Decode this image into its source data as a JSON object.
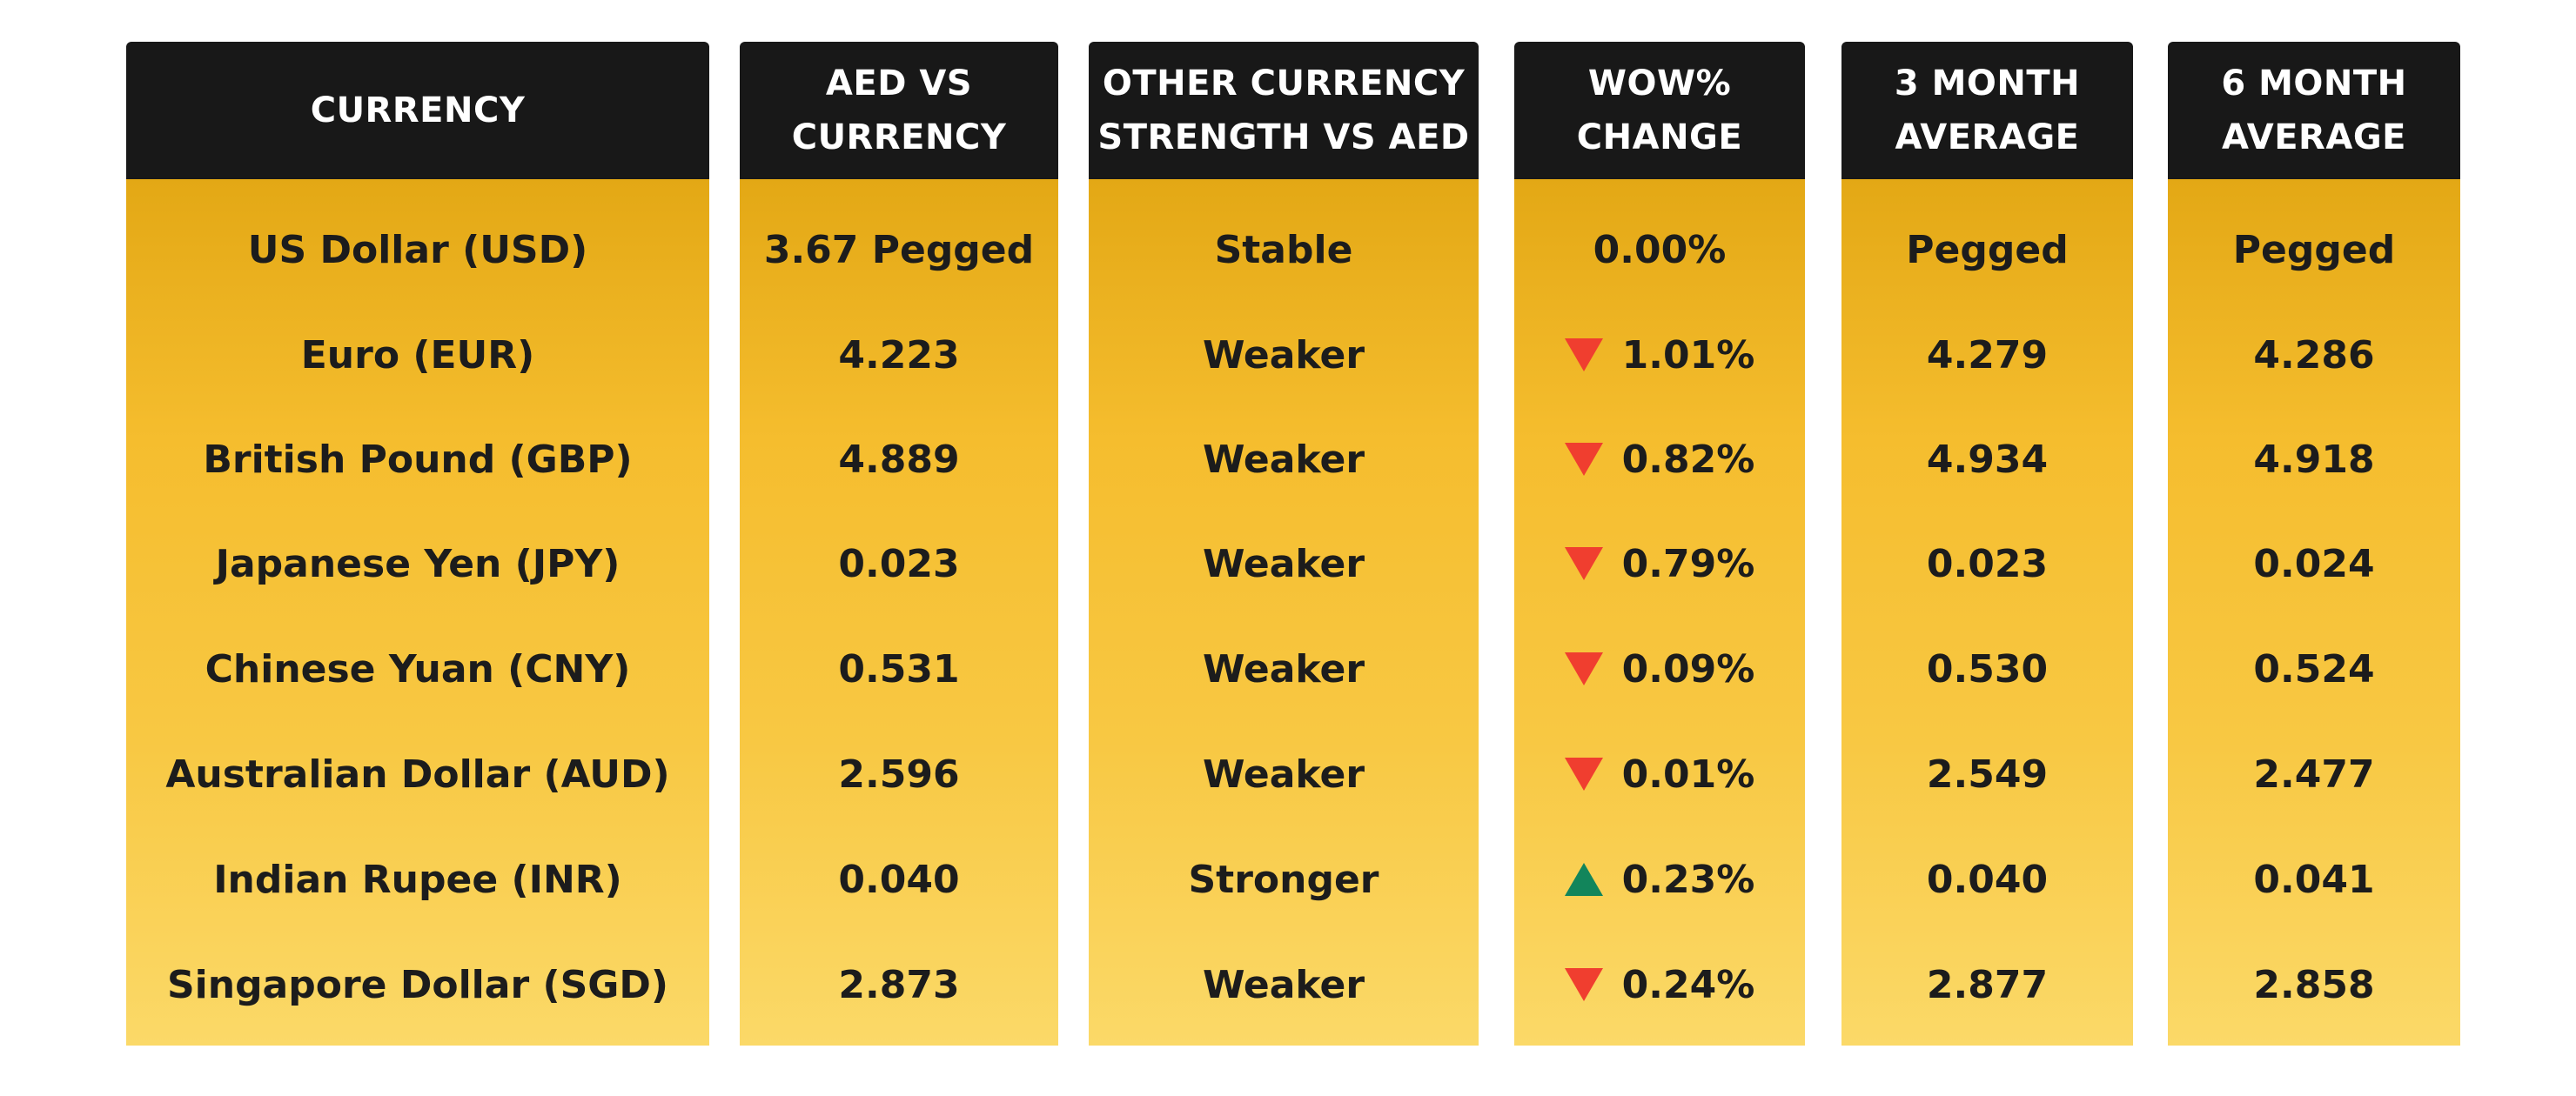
{
  "table": {
    "headers": {
      "currency": "CURRENCY",
      "aed_vs_currency": "AED VS\nCURRENCY",
      "strength": "OTHER CURRENCY\nSTRENGTH VS AED",
      "wow": "WOW%\nCHANGE",
      "avg3": "3 MONTH\nAVERAGE",
      "avg6": "6 MONTH\nAVERAGE"
    },
    "rows": [
      {
        "currency": "US Dollar (USD)",
        "aed_vs_currency": "3.67 Pegged",
        "strength": "Stable",
        "wow": "0.00%",
        "wow_dir": "none",
        "avg3": "Pegged",
        "avg6": "Pegged"
      },
      {
        "currency": "Euro (EUR)",
        "aed_vs_currency": "4.223",
        "strength": "Weaker",
        "wow": "1.01%",
        "wow_dir": "down",
        "avg3": "4.279",
        "avg6": "4.286"
      },
      {
        "currency": "British Pound (GBP)",
        "aed_vs_currency": "4.889",
        "strength": "Weaker",
        "wow": "0.82%",
        "wow_dir": "down",
        "avg3": "4.934",
        "avg6": "4.918"
      },
      {
        "currency": "Japanese Yen (JPY)",
        "aed_vs_currency": "0.023",
        "strength": "Weaker",
        "wow": "0.79%",
        "wow_dir": "down",
        "avg3": "0.023",
        "avg6": "0.024"
      },
      {
        "currency": "Chinese Yuan (CNY)",
        "aed_vs_currency": "0.531",
        "strength": "Weaker",
        "wow": "0.09%",
        "wow_dir": "down",
        "avg3": "0.530",
        "avg6": "0.524"
      },
      {
        "currency": "Australian Dollar (AUD)",
        "aed_vs_currency": "2.596",
        "strength": "Weaker",
        "wow": "0.01%",
        "wow_dir": "down",
        "avg3": "2.549",
        "avg6": "2.477"
      },
      {
        "currency": "Indian Rupee (INR)",
        "aed_vs_currency": "0.040",
        "strength": "Stronger",
        "wow": "0.23%",
        "wow_dir": "up",
        "avg3": "0.040",
        "avg6": "0.041"
      },
      {
        "currency": "Singapore Dollar (SGD)",
        "aed_vs_currency": "2.873",
        "strength": "Weaker",
        "wow": "0.24%",
        "wow_dir": "down",
        "avg3": "2.877",
        "avg6": "2.858"
      }
    ]
  },
  "colors": {
    "header_bg": "#181818",
    "body_gradient_top": "#e3a815",
    "body_gradient_bottom": "#fbd968",
    "down_arrow": "#f03e2f",
    "up_arrow": "#12855b"
  },
  "icons": {
    "down": "triangle-down-icon",
    "up": "triangle-up-icon"
  }
}
